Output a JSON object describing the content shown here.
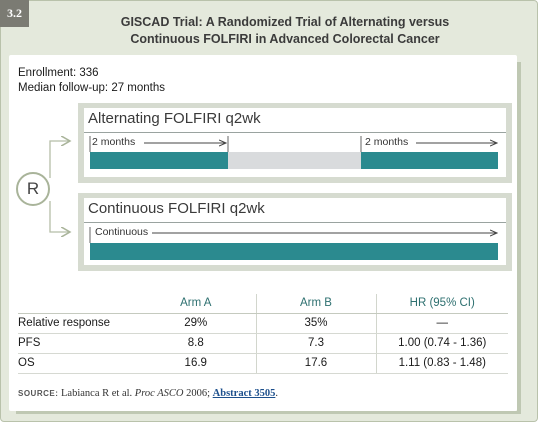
{
  "figure": {
    "number": "3.2",
    "title_line1": "GISCAD Trial: A Randomized Trial of Alternating versus",
    "title_line2": "Continuous FOLFIRI in Advanced Colorectal Cancer"
  },
  "meta": {
    "enrollment": "Enrollment: 336",
    "followup": "Median follow-up: 27 months"
  },
  "randomization_label": "R",
  "arms": {
    "alternating": {
      "title": "Alternating FOLFIRI q2wk",
      "label_left": "2 months",
      "label_right": "2 months"
    },
    "continuous": {
      "title": "Continuous FOLFIRI q2wk",
      "label": "Continuous"
    }
  },
  "table": {
    "headers": [
      "",
      "Arm A",
      "Arm B",
      "HR (95% CI)"
    ],
    "rows": [
      [
        "Relative response",
        "29%",
        "35%",
        "—"
      ],
      [
        "PFS",
        "8.8",
        "7.3",
        "1.00 (0.74 - 1.36)"
      ],
      [
        "OS",
        "16.9",
        "17.6",
        "1.11 (0.83 - 1.48)"
      ]
    ]
  },
  "source": {
    "label": "SOURCE:",
    "text_before": " Labianca R et al. ",
    "journal": "Proc ASCO",
    "text_year": " 2006; ",
    "link": "Abstract 3505",
    "text_end": "."
  },
  "colors": {
    "frame_bg": "#e4e9dc",
    "bar_teal": "#2b8a8f",
    "bar_gray": "#d9dbdd",
    "header_text": "#2e7070",
    "link": "#1c4f8c"
  }
}
